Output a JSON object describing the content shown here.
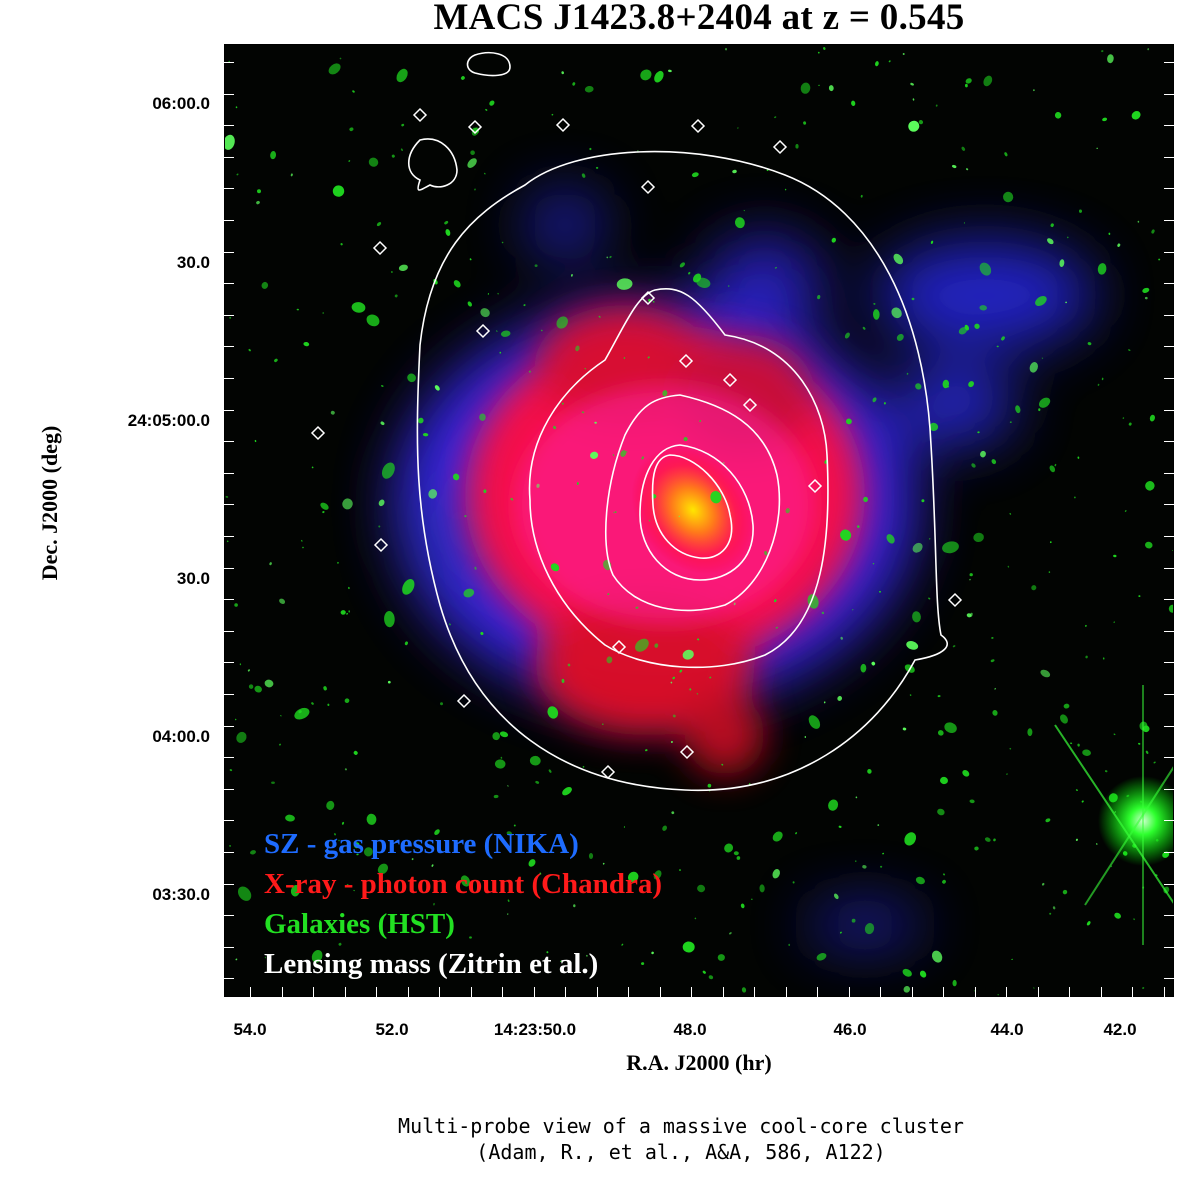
{
  "title": "MACS J1423.8+2404 at z = 0.545",
  "axes": {
    "ylabel": "Dec. J2000 (deg)",
    "xlabel": "R.A. J2000 (hr)",
    "yticks": [
      "06:00.0",
      "30.0",
      "24:05:00.0",
      "30.0",
      "04:00.0",
      "03:30.0"
    ],
    "xticks": [
      "54.0",
      "52.0",
      "14:23:50.0",
      "48.0",
      "46.0",
      "44.0",
      "42.0"
    ]
  },
  "legend": [
    {
      "label": "SZ - gas pressure (NIKA)",
      "color": "#1e6cff"
    },
    {
      "label": "X-ray - photon count (Chandra)",
      "color": "#ff1a1a"
    },
    {
      "label": "Galaxies (HST)",
      "color": "#22e022"
    },
    {
      "label": "Lensing mass (Zitrin et al.)",
      "color": "#ffffff"
    }
  ],
  "caption": {
    "line1": "Multi-probe view of a massive cool-core cluster",
    "line2": "(Adam, R., et al., A&A, 586, A122)"
  }
}
